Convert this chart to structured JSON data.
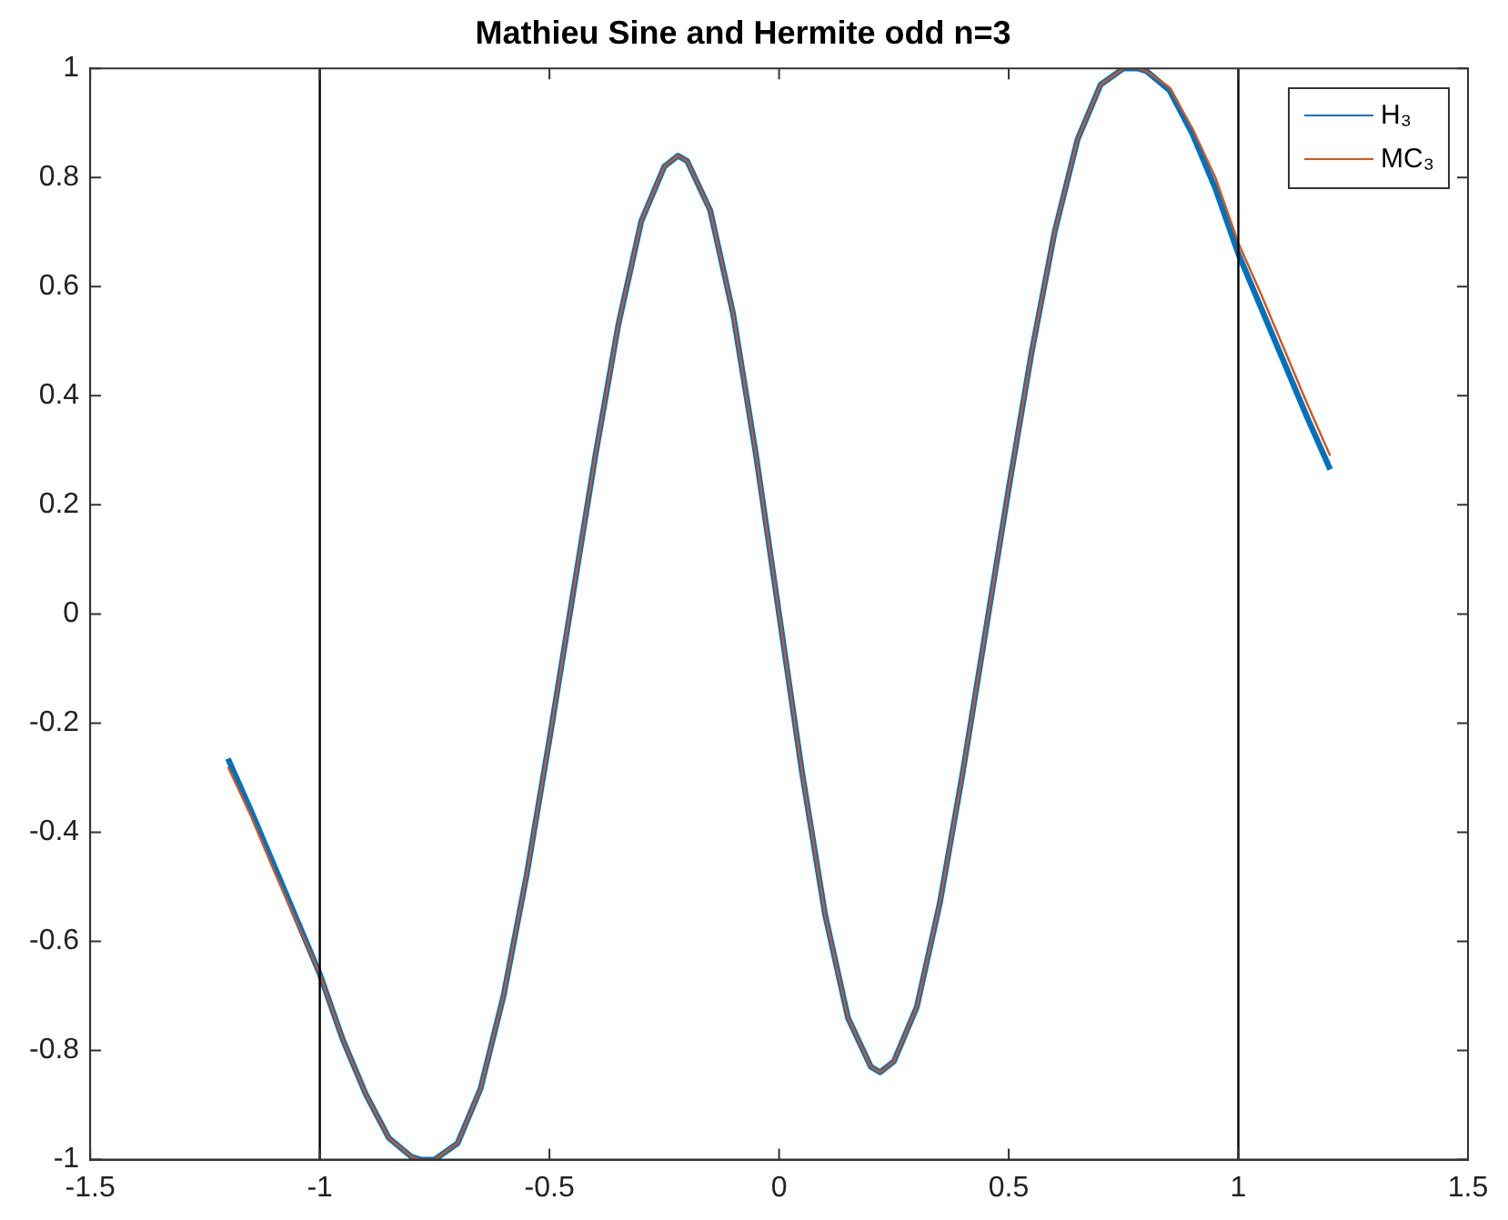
{
  "chart_data": {
    "type": "line",
    "title": "Mathieu Sine and Hermite odd n=3",
    "x": [
      -1.2,
      -1.15,
      -1.1,
      -1.05,
      -1,
      -0.95,
      -0.9,
      -0.85,
      -0.8,
      -0.78,
      -0.75,
      -0.7,
      -0.65,
      -0.6,
      -0.55,
      -0.5,
      -0.45,
      -0.4,
      -0.35,
      -0.3,
      -0.25,
      -0.22,
      -0.2,
      -0.15,
      -0.1,
      -0.05,
      0,
      0.05,
      0.1,
      0.15,
      0.2,
      0.22,
      0.25,
      0.3,
      0.35,
      0.4,
      0.45,
      0.5,
      0.55,
      0.6,
      0.65,
      0.7,
      0.75,
      0.78,
      0.8,
      0.85,
      0.9,
      0.95,
      1,
      1.05,
      1.1,
      1.15,
      1.2
    ],
    "series": [
      {
        "name": "H₃",
        "color": "#0072bd",
        "values": [
          -0.265,
          -0.36,
          -0.46,
          -0.56,
          -0.66,
          -0.78,
          -0.88,
          -0.96,
          -0.995,
          -1.0,
          -1.0,
          -0.97,
          -0.87,
          -0.7,
          -0.48,
          -0.23,
          0.03,
          0.29,
          0.53,
          0.72,
          0.82,
          0.84,
          0.83,
          0.74,
          0.55,
          0.29,
          0,
          -0.29,
          -0.55,
          -0.74,
          -0.83,
          -0.84,
          -0.82,
          -0.72,
          -0.53,
          -0.29,
          -0.03,
          0.23,
          0.48,
          0.7,
          0.87,
          0.97,
          1.0,
          1.0,
          0.995,
          0.96,
          0.88,
          0.78,
          0.66,
          0.56,
          0.46,
          0.36,
          0.265
        ]
      },
      {
        "name": "MC₃",
        "color": "#d95319",
        "values": [
          -0.28,
          -0.37,
          -0.47,
          -0.565,
          -0.66,
          -0.78,
          -0.88,
          -0.96,
          -0.995,
          -1.0,
          -1.0,
          -0.97,
          -0.87,
          -0.7,
          -0.48,
          -0.23,
          0.03,
          0.29,
          0.53,
          0.72,
          0.82,
          0.84,
          0.83,
          0.74,
          0.55,
          0.29,
          0,
          -0.29,
          -0.55,
          -0.74,
          -0.83,
          -0.84,
          -0.82,
          -0.72,
          -0.53,
          -0.29,
          -0.03,
          0.23,
          0.48,
          0.7,
          0.87,
          0.97,
          1.0,
          1.0,
          0.995,
          0.965,
          0.89,
          0.8,
          0.68,
          0.585,
          0.485,
          0.385,
          0.29
        ]
      }
    ],
    "xlim": [
      -1.5,
      1.5
    ],
    "xticks": [
      -1.5,
      -1,
      -0.5,
      0,
      0.5,
      1,
      1.5
    ],
    "ylim": [
      -1,
      1
    ],
    "yticks": [
      -1,
      -0.8,
      -0.6,
      -0.4,
      -0.2,
      0,
      0.2,
      0.4,
      0.6,
      0.8,
      1
    ],
    "ref_lines": [
      {
        "axis": "x",
        "value": -1,
        "color": "#000000"
      },
      {
        "axis": "x",
        "value": 1,
        "color": "#000000"
      }
    ],
    "grid": false,
    "legend": "top right",
    "marker": "none",
    "line_style": "solid"
  }
}
